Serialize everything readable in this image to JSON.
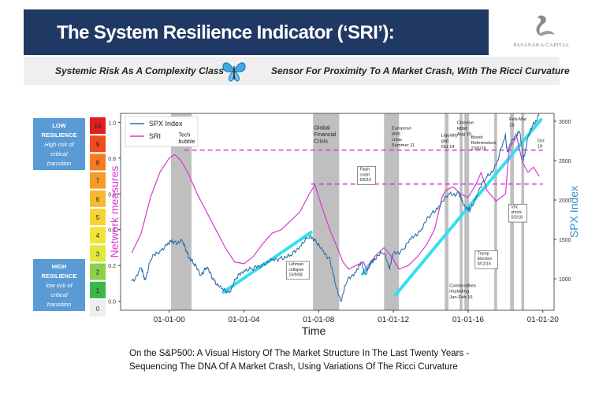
{
  "header": {
    "title": "The System Resilience Indicator (‘SRI’):",
    "logo_text": "PASANAKA CAPITAL",
    "subtitle_left": "Systemic Risk As A Complexity Class",
    "subtitle_right": "Sensor For Proximity To A Market Crash, With The Ricci Curvature"
  },
  "caption": {
    "line1": "On the S&P500: A Visual History Of The Market Structure In The Last Twenty Years -",
    "line2": "Sequencing The DNA Of A Market Crash, Using Variations Of The Ricci Curvature"
  },
  "colors": {
    "banner": "#1f3864",
    "spx": "#2f6fa8",
    "sri": "#d63ad0",
    "trend": "#33e0f0",
    "crisis_band": "#b8b8b8",
    "axis_left_label": "#d63ad0",
    "axis_right_label": "#2f8fc4"
  },
  "scale": {
    "low_box": {
      "title": "LOW",
      "line2": "RESILIENCE",
      "line3": "High risk of",
      "line4": "critical",
      "line5": "transition",
      "color": "#5b9bd5"
    },
    "high_box": {
      "title": "HIGH",
      "line2": "RESILIENCE",
      "line3": "low risk of",
      "line4": "critical",
      "line5": "transition",
      "color": "#5b9bd5"
    },
    "levels": [
      {
        "label": "10",
        "color": "#e02020"
      },
      {
        "label": "9",
        "color": "#f04b1d"
      },
      {
        "label": "8",
        "color": "#f57a22"
      },
      {
        "label": "7",
        "color": "#f79a28"
      },
      {
        "label": "6",
        "color": "#f7b733"
      },
      {
        "label": "5",
        "color": "#f7d436"
      },
      {
        "label": "4",
        "color": "#f2e23a"
      },
      {
        "label": "3",
        "color": "#e0e83c"
      },
      {
        "label": "2",
        "color": "#8cd14a"
      },
      {
        "label": "1",
        "color": "#3cb54a"
      },
      {
        "label": "0",
        "color": "#eeeeee"
      }
    ]
  },
  "chart_data": {
    "type": "line",
    "xlabel": "Time",
    "ylabel": "Network measures",
    "y2label": "SPX Index",
    "xlim": [
      1997.4,
      2020.6
    ],
    "ylim": [
      -0.05,
      1.05
    ],
    "y2lim": [
      600,
      3100
    ],
    "x_ticks": [
      {
        "value": 2000,
        "label": "01-01-00"
      },
      {
        "value": 2004,
        "label": "01-01-04"
      },
      {
        "value": 2008,
        "label": "01-01-08"
      },
      {
        "value": 2012,
        "label": "01-01-12"
      },
      {
        "value": 2016,
        "label": "01-01-16"
      },
      {
        "value": 2020,
        "label": "01-01-20"
      }
    ],
    "y_ticks": [
      "0.0",
      "0.2",
      "0.4",
      "0.6",
      "0.8",
      "1.0"
    ],
    "y2_ticks": [
      "1000",
      "1500",
      "2000",
      "2500",
      "3000"
    ],
    "legend": [
      {
        "name": "SPX Index"
      },
      {
        "name": "SRI"
      }
    ],
    "legend_position": "top-left",
    "series": [
      {
        "name": "SPX Index",
        "axis": "right",
        "x": [
          1998.0,
          1998.5,
          1998.7,
          1999.0,
          1999.5,
          2000.0,
          2000.3,
          2000.7,
          2001.0,
          2001.3,
          2001.7,
          2002.0,
          2002.4,
          2002.8,
          2003.2,
          2003.6,
          2004.0,
          2004.5,
          2005.0,
          2005.5,
          2006.0,
          2006.5,
          2007.0,
          2007.5,
          2007.8,
          2008.2,
          2008.6,
          2008.9,
          2009.2,
          2009.5,
          2010.0,
          2010.3,
          2010.5,
          2010.8,
          2011.0,
          2011.5,
          2011.8,
          2012.0,
          2012.5,
          2013.0,
          2013.5,
          2014.0,
          2014.5,
          2015.0,
          2015.5,
          2015.7,
          2016.0,
          2016.1,
          2016.5,
          2017.0,
          2017.5,
          2018.0,
          2018.1,
          2018.5,
          2018.75,
          2018.95,
          2019.2,
          2019.5,
          2019.8
        ],
        "values": [
          970,
          1120,
          990,
          1230,
          1370,
          1450,
          1480,
          1460,
          1320,
          1180,
          1070,
          1130,
          1000,
          850,
          840,
          990,
          1130,
          1110,
          1200,
          1210,
          1280,
          1270,
          1440,
          1520,
          1520,
          1330,
          1270,
          900,
          740,
          950,
          1120,
          1180,
          1060,
          1190,
          1280,
          1320,
          1160,
          1300,
          1380,
          1500,
          1650,
          1800,
          1960,
          2060,
          2100,
          1950,
          1900,
          1860,
          2100,
          2280,
          2450,
          2800,
          2620,
          2800,
          2900,
          2500,
          2800,
          2950,
          3100
        ]
      },
      {
        "name": "SRI",
        "axis": "left",
        "x": [
          1998.0,
          1998.5,
          1999.0,
          1999.5,
          2000.0,
          2000.3,
          2000.6,
          2001.0,
          2001.5,
          2002.0,
          2002.5,
          2003.0,
          2003.5,
          2004.0,
          2004.5,
          2005.0,
          2005.5,
          2006.0,
          2006.5,
          2007.0,
          2007.5,
          2007.8,
          2008.2,
          2008.6,
          2009.0,
          2009.3,
          2009.6,
          2010.0,
          2010.4,
          2010.6,
          2011.0,
          2011.5,
          2011.9,
          2012.3,
          2012.8,
          2013.3,
          2013.8,
          2014.2,
          2014.6,
          2014.8,
          2015.2,
          2015.6,
          2016.0,
          2016.4,
          2016.7,
          2017.0,
          2017.5,
          2018.0,
          2018.2,
          2018.6,
          2018.9,
          2019.2,
          2019.5,
          2019.8
        ],
        "values": [
          0.27,
          0.38,
          0.58,
          0.72,
          0.8,
          0.82,
          0.79,
          0.72,
          0.6,
          0.5,
          0.4,
          0.3,
          0.22,
          0.21,
          0.25,
          0.32,
          0.38,
          0.4,
          0.45,
          0.5,
          0.6,
          0.65,
          0.52,
          0.4,
          0.3,
          0.22,
          0.18,
          0.2,
          0.22,
          0.17,
          0.25,
          0.3,
          0.25,
          0.18,
          0.2,
          0.25,
          0.32,
          0.4,
          0.58,
          0.62,
          0.64,
          0.6,
          0.58,
          0.65,
          0.72,
          0.62,
          0.56,
          0.6,
          0.85,
          0.92,
          0.78,
          0.72,
          0.75,
          0.7
        ]
      }
    ],
    "trend_lines": [
      {
        "x": [
          2002.9,
          2007.6
        ],
        "spx": [
          830,
          1590
        ]
      },
      {
        "x": [
          2010.35,
          2010.7
        ],
        "spx": [
          1060,
          1170
        ]
      },
      {
        "x": [
          2012.1,
          2019.9
        ],
        "spx": [
          790,
          3020
        ]
      }
    ],
    "dashed_levels": [
      {
        "y": 0.845,
        "x": [
          2000.8,
          2020.0
        ]
      },
      {
        "y": 0.655,
        "x": [
          2007.6,
          2020.0
        ]
      }
    ],
    "crisis_bands": [
      [
        2000.1,
        2001.2
      ],
      [
        2007.7,
        2009.1
      ],
      [
        2011.5,
        2012.3
      ],
      [
        2014.75,
        2014.95
      ],
      [
        2015.55,
        2015.7
      ],
      [
        2015.8,
        2016.05
      ],
      [
        2017.4,
        2017.55
      ],
      [
        2018.25,
        2018.45
      ],
      [
        2018.85,
        2019.0
      ]
    ],
    "annotations": [
      {
        "text": [
          "Tech",
          "bubble"
        ],
        "x": 2000.5,
        "y": 0.92,
        "boxed": false
      },
      {
        "text": [
          "Global",
          "Financial",
          "Crisis"
        ],
        "x": 2007.75,
        "y": 0.96,
        "boxed": false
      },
      {
        "text": [
          "European",
          "debt",
          "crisis",
          "Summer 11"
        ],
        "x": 2011.9,
        "y": 0.96,
        "boxed": false
      },
      {
        "text": [
          "Flash",
          "crash",
          "6/5/10"
        ],
        "x": 2010.2,
        "y": 0.73,
        "boxed": true
      },
      {
        "text": [
          "Lehman",
          "collapse",
          "15/9/08"
        ],
        "x": 2006.4,
        "y": 0.2,
        "boxed": true
      },
      {
        "text": [
          "Liquidity",
          "gap",
          "Oct 14"
        ],
        "x": 2014.55,
        "y": 0.92,
        "boxed": false
      },
      {
        "text": [
          "Chinese",
          "RBM",
          "Aug 15"
        ],
        "x": 2015.4,
        "y": 0.99,
        "boxed": false
      },
      {
        "text": [
          "Brexit",
          "Referendum",
          "23/6/16"
        ],
        "x": 2016.15,
        "y": 0.91,
        "boxed": false
      },
      {
        "text": [
          "Feb-Mar",
          "18"
        ],
        "x": 2018.2,
        "y": 1.01,
        "boxed": false
      },
      {
        "text": [
          "Oct",
          "19"
        ],
        "x": 2019.7,
        "y": 0.89,
        "boxed": false
      },
      {
        "text": [
          "VIX",
          "shock",
          "5/2/18"
        ],
        "x": 2018.3,
        "y": 0.52,
        "boxed": true
      },
      {
        "text": [
          "Trump",
          "Election",
          "8/11/16"
        ],
        "x": 2016.5,
        "y": 0.26,
        "boxed": true
      },
      {
        "text": [
          "Commodities",
          "imploding",
          "Jan-Feb 16"
        ],
        "x": 2015.0,
        "y": 0.08,
        "boxed": false
      }
    ]
  }
}
